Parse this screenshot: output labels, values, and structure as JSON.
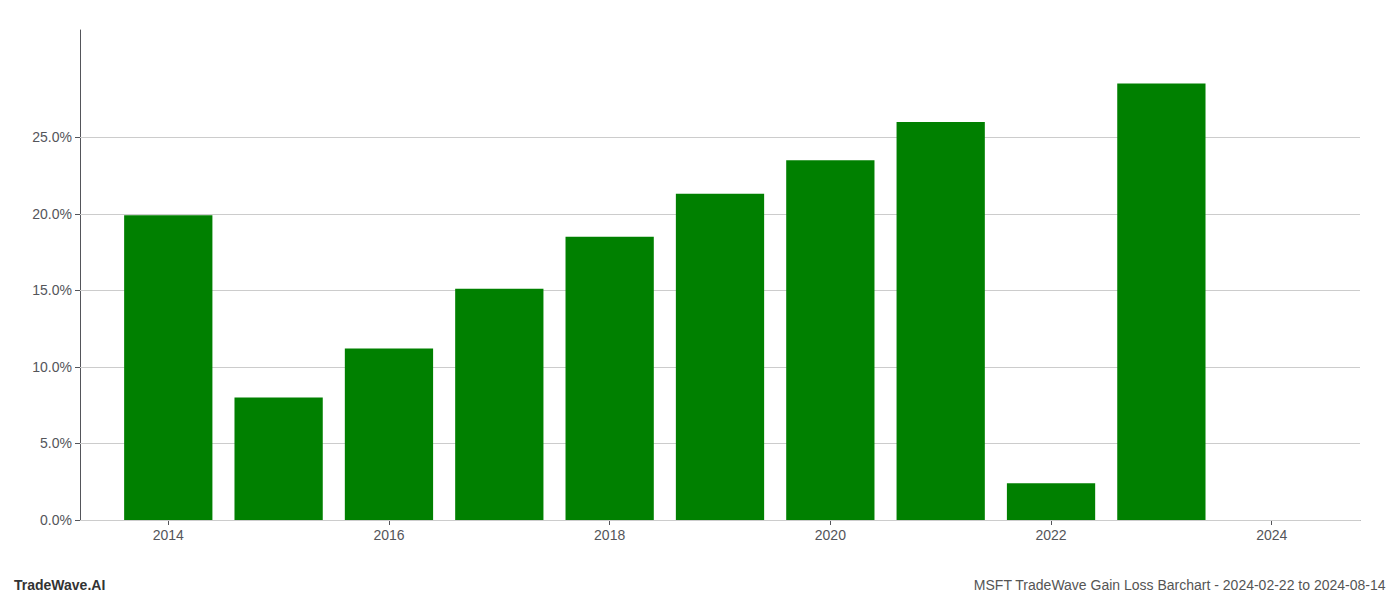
{
  "chart_data": {
    "type": "bar",
    "x": [
      2014,
      2015,
      2016,
      2017,
      2018,
      2019,
      2020,
      2021,
      2022,
      2023
    ],
    "values": [
      0.199,
      0.08,
      0.112,
      0.151,
      0.185,
      0.213,
      0.235,
      0.26,
      0.024,
      0.285
    ],
    "color": "#008000",
    "xlim": [
      2013.2,
      2024.8
    ],
    "xticks": [
      2014,
      2016,
      2018,
      2020,
      2022,
      2024
    ],
    "ylim": [
      0.0,
      0.32
    ],
    "yticks": [
      {
        "value": 0.0,
        "label": "0.0%"
      },
      {
        "value": 0.05,
        "label": "5.0%"
      },
      {
        "value": 0.1,
        "label": "10.0%"
      },
      {
        "value": 0.15,
        "label": "15.0%"
      },
      {
        "value": 0.2,
        "label": "20.0%"
      },
      {
        "value": 0.25,
        "label": "25.0%"
      }
    ],
    "grid": true,
    "annotations": [
      "TradeWave.AI",
      "MSFT TradeWave Gain Loss Barchart - 2024-02-22 to 2024-08-14"
    ]
  }
}
